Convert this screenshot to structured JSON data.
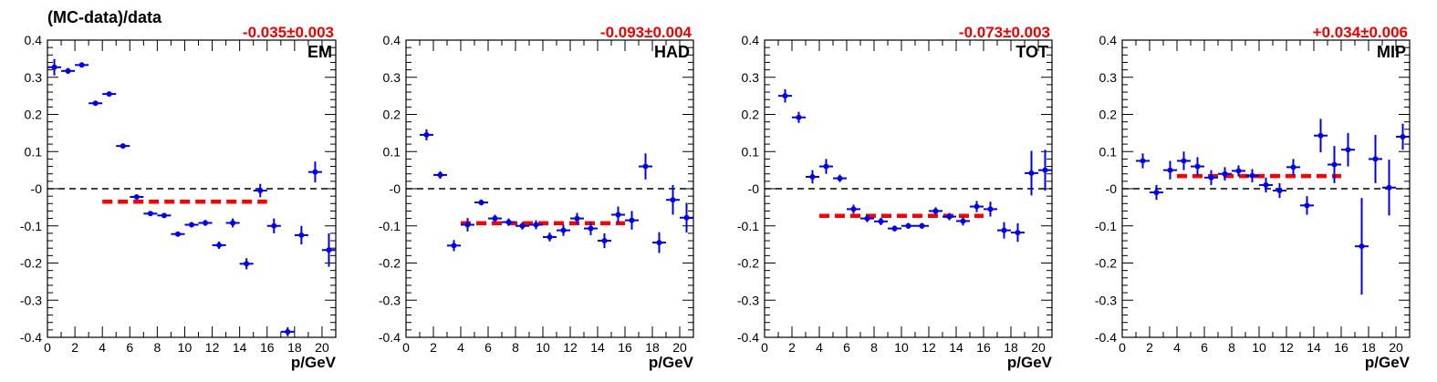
{
  "ylabel": "(MC-data)/data",
  "colors": {
    "points": "#0000e6",
    "fit": "#ff0000",
    "fit_text": "#ee0000",
    "zero_line": "#000000",
    "frame": "#000000"
  },
  "chart_data": [
    {
      "type": "scatter",
      "panel_label": "EM",
      "fit_text": "-0.035±0.003",
      "xlabel": "p/GeV",
      "ylabel": "(MC-data)/data",
      "xlim": [
        0,
        21
      ],
      "ylim": [
        -0.4,
        0.4
      ],
      "x_ticks": [
        "0",
        "2",
        "4",
        "6",
        "8",
        "10",
        "12",
        "14",
        "16",
        "18",
        "20"
      ],
      "y_ticks": [
        "-0.4",
        "-0.3",
        "-0.2",
        "-0.1",
        "-0",
        "0.1",
        "0.2",
        "0.3",
        "0.4"
      ],
      "fit": {
        "value": -0.035,
        "error": 0.003,
        "x_range": [
          4,
          16
        ]
      },
      "zero_line": 0,
      "points": [
        {
          "x": 0.5,
          "y": 0.327,
          "err": 0.022
        },
        {
          "x": 1.5,
          "y": 0.317,
          "err": 0.008
        },
        {
          "x": 2.5,
          "y": 0.333,
          "err": 0.006
        },
        {
          "x": 3.5,
          "y": 0.23,
          "err": 0.006
        },
        {
          "x": 4.5,
          "y": 0.255,
          "err": 0.006
        },
        {
          "x": 5.5,
          "y": 0.115,
          "err": 0.005
        },
        {
          "x": 6.5,
          "y": -0.022,
          "err": 0.006
        },
        {
          "x": 7.5,
          "y": -0.067,
          "err": 0.005
        },
        {
          "x": 8.5,
          "y": -0.072,
          "err": 0.005
        },
        {
          "x": 9.5,
          "y": -0.122,
          "err": 0.006
        },
        {
          "x": 10.5,
          "y": -0.097,
          "err": 0.007
        },
        {
          "x": 11.5,
          "y": -0.092,
          "err": 0.008
        },
        {
          "x": 12.5,
          "y": -0.152,
          "err": 0.01
        },
        {
          "x": 13.5,
          "y": -0.092,
          "err": 0.012
        },
        {
          "x": 14.5,
          "y": -0.202,
          "err": 0.015
        },
        {
          "x": 15.5,
          "y": -0.005,
          "err": 0.018
        },
        {
          "x": 16.5,
          "y": -0.1,
          "err": 0.02
        },
        {
          "x": 17.5,
          "y": -0.385,
          "err": 0.012
        },
        {
          "x": 18.5,
          "y": -0.125,
          "err": 0.025
        },
        {
          "x": 19.5,
          "y": 0.045,
          "err": 0.028
        },
        {
          "x": 20.5,
          "y": -0.165,
          "err": 0.045
        }
      ]
    },
    {
      "type": "scatter",
      "panel_label": "HAD",
      "fit_text": "-0.093±0.004",
      "xlabel": "p/GeV",
      "ylabel": "",
      "xlim": [
        0,
        21
      ],
      "ylim": [
        -0.4,
        0.4
      ],
      "x_ticks": [
        "0",
        "2",
        "4",
        "6",
        "8",
        "10",
        "12",
        "14",
        "16",
        "18",
        "20"
      ],
      "y_ticks": [
        "-0.4",
        "-0.3",
        "-0.2",
        "-0.1",
        "-0",
        "0.1",
        "0.2",
        "0.3",
        "0.4"
      ],
      "fit": {
        "value": -0.093,
        "error": 0.004,
        "x_range": [
          4,
          16
        ]
      },
      "zero_line": 0,
      "points": [
        {
          "x": 1.5,
          "y": 0.145,
          "err": 0.015
        },
        {
          "x": 2.5,
          "y": 0.037,
          "err": 0.01
        },
        {
          "x": 3.5,
          "y": -0.153,
          "err": 0.015
        },
        {
          "x": 4.5,
          "y": -0.097,
          "err": 0.018
        },
        {
          "x": 5.5,
          "y": -0.037,
          "err": 0.008
        },
        {
          "x": 6.5,
          "y": -0.08,
          "err": 0.01
        },
        {
          "x": 7.5,
          "y": -0.09,
          "err": 0.01
        },
        {
          "x": 8.5,
          "y": -0.1,
          "err": 0.01
        },
        {
          "x": 9.5,
          "y": -0.097,
          "err": 0.012
        },
        {
          "x": 10.5,
          "y": -0.13,
          "err": 0.012
        },
        {
          "x": 11.5,
          "y": -0.112,
          "err": 0.015
        },
        {
          "x": 12.5,
          "y": -0.08,
          "err": 0.015
        },
        {
          "x": 13.5,
          "y": -0.107,
          "err": 0.018
        },
        {
          "x": 14.5,
          "y": -0.14,
          "err": 0.02
        },
        {
          "x": 15.5,
          "y": -0.07,
          "err": 0.022
        },
        {
          "x": 16.5,
          "y": -0.085,
          "err": 0.025
        },
        {
          "x": 17.5,
          "y": 0.06,
          "err": 0.035
        },
        {
          "x": 18.5,
          "y": -0.145,
          "err": 0.028
        },
        {
          "x": 19.5,
          "y": -0.03,
          "err": 0.04
        },
        {
          "x": 20.5,
          "y": -0.078,
          "err": 0.04
        }
      ]
    },
    {
      "type": "scatter",
      "panel_label": "TOT",
      "fit_text": "-0.073±0.003",
      "xlabel": "p/GeV",
      "ylabel": "",
      "xlim": [
        0,
        21
      ],
      "ylim": [
        -0.4,
        0.4
      ],
      "x_ticks": [
        "0",
        "2",
        "4",
        "6",
        "8",
        "10",
        "12",
        "14",
        "16",
        "18",
        "20"
      ],
      "y_ticks": [
        "-0.4",
        "-0.3",
        "-0.2",
        "-0.1",
        "-0",
        "0.1",
        "0.2",
        "0.3",
        "0.4"
      ],
      "fit": {
        "value": -0.073,
        "error": 0.003,
        "x_range": [
          4,
          16
        ]
      },
      "zero_line": 0,
      "points": [
        {
          "x": 1.5,
          "y": 0.25,
          "err": 0.018
        },
        {
          "x": 2.5,
          "y": 0.192,
          "err": 0.015
        },
        {
          "x": 3.5,
          "y": 0.032,
          "err": 0.018
        },
        {
          "x": 4.5,
          "y": 0.06,
          "err": 0.02
        },
        {
          "x": 5.5,
          "y": 0.028,
          "err": 0.01
        },
        {
          "x": 6.5,
          "y": -0.055,
          "err": 0.012
        },
        {
          "x": 7.5,
          "y": -0.08,
          "err": 0.01
        },
        {
          "x": 8.5,
          "y": -0.088,
          "err": 0.01
        },
        {
          "x": 9.5,
          "y": -0.107,
          "err": 0.008
        },
        {
          "x": 10.5,
          "y": -0.1,
          "err": 0.008
        },
        {
          "x": 11.5,
          "y": -0.1,
          "err": 0.008
        },
        {
          "x": 12.5,
          "y": -0.06,
          "err": 0.01
        },
        {
          "x": 13.5,
          "y": -0.075,
          "err": 0.01
        },
        {
          "x": 14.5,
          "y": -0.087,
          "err": 0.012
        },
        {
          "x": 15.5,
          "y": -0.048,
          "err": 0.015
        },
        {
          "x": 16.5,
          "y": -0.055,
          "err": 0.02
        },
        {
          "x": 17.5,
          "y": -0.112,
          "err": 0.022
        },
        {
          "x": 18.5,
          "y": -0.118,
          "err": 0.025
        },
        {
          "x": 19.5,
          "y": 0.042,
          "err": 0.06
        },
        {
          "x": 20.5,
          "y": 0.05,
          "err": 0.055
        }
      ]
    },
    {
      "type": "scatter",
      "panel_label": "MIP",
      "fit_text": "+0.034±0.006",
      "xlabel": "p/GeV",
      "ylabel": "",
      "xlim": [
        0,
        21
      ],
      "ylim": [
        -0.4,
        0.4
      ],
      "x_ticks": [
        "0",
        "2",
        "4",
        "6",
        "8",
        "10",
        "12",
        "14",
        "16",
        "18",
        "20"
      ],
      "y_ticks": [
        "-0.4",
        "-0.3",
        "-0.2",
        "-0.1",
        "-0",
        "0.1",
        "0.2",
        "0.3",
        "0.4"
      ],
      "fit": {
        "value": 0.034,
        "error": 0.006,
        "x_range": [
          4,
          16
        ]
      },
      "zero_line": 0,
      "points": [
        {
          "x": 1.5,
          "y": 0.075,
          "err": 0.02
        },
        {
          "x": 2.5,
          "y": -0.01,
          "err": 0.02
        },
        {
          "x": 3.5,
          "y": 0.05,
          "err": 0.025
        },
        {
          "x": 4.5,
          "y": 0.075,
          "err": 0.025
        },
        {
          "x": 5.5,
          "y": 0.06,
          "err": 0.025
        },
        {
          "x": 6.5,
          "y": 0.03,
          "err": 0.02
        },
        {
          "x": 7.5,
          "y": 0.04,
          "err": 0.018
        },
        {
          "x": 8.5,
          "y": 0.048,
          "err": 0.015
        },
        {
          "x": 9.5,
          "y": 0.035,
          "err": 0.018
        },
        {
          "x": 10.5,
          "y": 0.01,
          "err": 0.02
        },
        {
          "x": 11.5,
          "y": -0.005,
          "err": 0.02
        },
        {
          "x": 12.5,
          "y": 0.058,
          "err": 0.022
        },
        {
          "x": 13.5,
          "y": -0.045,
          "err": 0.025
        },
        {
          "x": 14.5,
          "y": 0.143,
          "err": 0.045
        },
        {
          "x": 15.5,
          "y": 0.065,
          "err": 0.05
        },
        {
          "x": 16.5,
          "y": 0.105,
          "err": 0.045
        },
        {
          "x": 17.5,
          "y": -0.155,
          "err": 0.13
        },
        {
          "x": 18.5,
          "y": 0.08,
          "err": 0.065
        },
        {
          "x": 19.5,
          "y": 0.003,
          "err": 0.075
        },
        {
          "x": 20.5,
          "y": 0.14,
          "err": 0.035
        }
      ]
    }
  ]
}
